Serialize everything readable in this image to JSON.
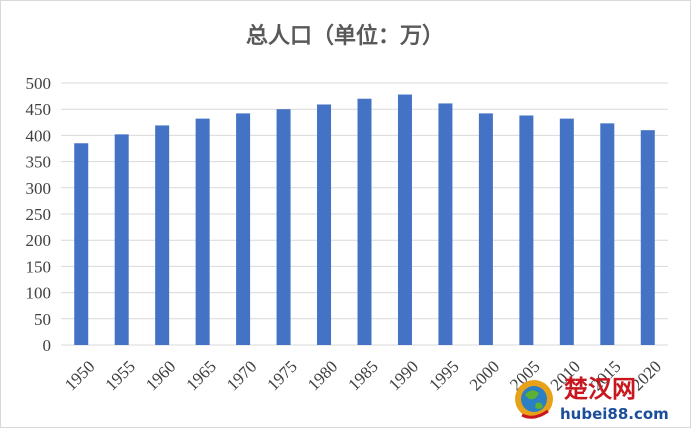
{
  "chart_data": {
    "type": "bar",
    "title": "总人口（单位：万）",
    "categories": [
      "1950",
      "1955",
      "1960",
      "1965",
      "1970",
      "1975",
      "1980",
      "1985",
      "1990",
      "1995",
      "2000",
      "2005",
      "2010",
      "2015",
      "2020"
    ],
    "values": [
      385,
      402,
      419,
      432,
      442,
      450,
      459,
      470,
      478,
      461,
      442,
      438,
      432,
      423,
      410
    ],
    "ylim": [
      0,
      500
    ],
    "yticks": [
      0,
      50,
      100,
      150,
      200,
      250,
      300,
      350,
      400,
      450,
      500
    ],
    "grid": true,
    "bar_color": "#4472c4"
  },
  "watermark": {
    "site_name": "楚汉网",
    "url": "hubei88.com"
  }
}
